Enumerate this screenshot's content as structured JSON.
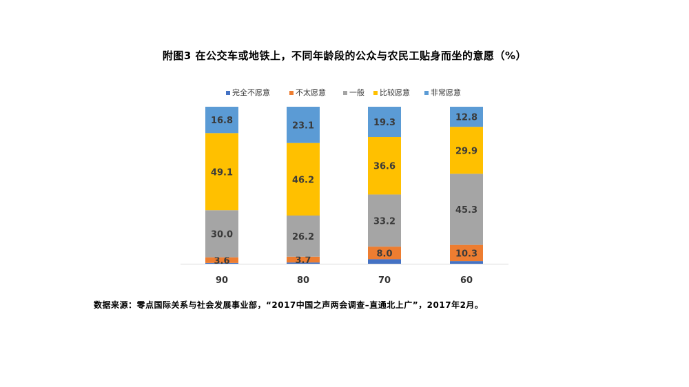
{
  "chart_data": {
    "type": "bar",
    "stacked": true,
    "title": "附图3 在公交车或地铁上，不同年龄段的公众与农民工贴身而坐的意愿（%）",
    "categories": [
      "90",
      "80",
      "70",
      "60"
    ],
    "series": [
      {
        "name": "完全不愿意",
        "color": "#4472C4",
        "values": [
          0.5,
          0.8,
          2.9,
          1.7
        ]
      },
      {
        "name": "不太愿意",
        "color": "#ED7D31",
        "values": [
          3.6,
          3.7,
          8.0,
          10.3
        ]
      },
      {
        "name": "一般",
        "color": "#A5A5A5",
        "values": [
          30.0,
          26.2,
          33.2,
          45.3
        ]
      },
      {
        "name": "比较愿意",
        "color": "#FFC000",
        "values": [
          49.1,
          46.2,
          36.6,
          29.9
        ]
      },
      {
        "name": "非常愿意",
        "color": "#5B9BD5",
        "values": [
          16.8,
          23.1,
          19.3,
          12.8
        ]
      }
    ],
    "data_labels": [
      [
        "",
        "3.6",
        "30.0",
        "49.1",
        "16.8"
      ],
      [
        "",
        "3.7",
        "26.2",
        "46.2",
        "23.1"
      ],
      [
        "",
        "8.0",
        "33.2",
        "36.6",
        "19.3"
      ],
      [
        "",
        "10.3",
        "45.3",
        "29.9",
        "12.8"
      ]
    ],
    "ylim": [
      0,
      100
    ],
    "grid": false,
    "legend_position": "top"
  },
  "source_note": "数据来源：零点国际关系与社会发展事业部，“2017中国之声两会调查–直通北上广”，2017年2月。"
}
